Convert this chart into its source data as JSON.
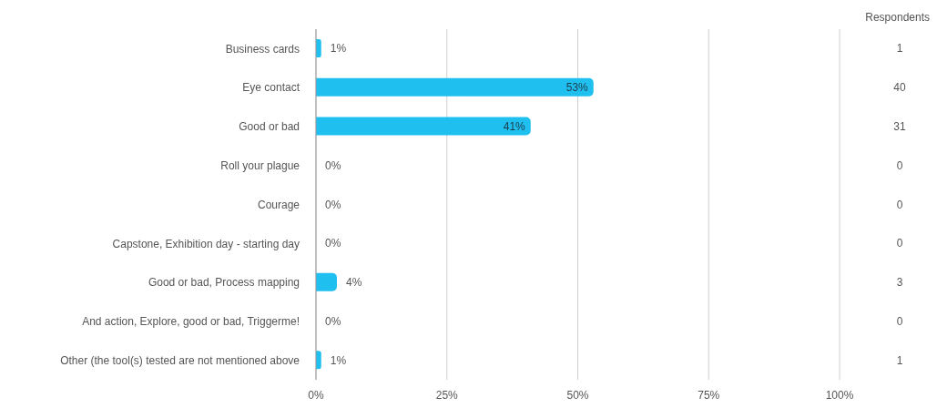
{
  "chart_data": {
    "type": "bar",
    "orientation": "horizontal",
    "categories": [
      "Business cards",
      "Eye contact",
      "Good or bad",
      "Roll your plague",
      "Courage",
      "Capstone, Exhibition day - starting day",
      "Good or bad, Process mapping",
      "And action, Explore, good or bad, Triggerme!",
      "Other (the tool(s) tested are not mentioned above"
    ],
    "values": [
      1,
      53,
      41,
      0,
      0,
      0,
      4,
      0,
      1
    ],
    "value_labels": [
      "1%",
      "53%",
      "41%",
      "0%",
      "0%",
      "0%",
      "4%",
      "0%",
      "1%"
    ],
    "color": "#1fc0f0",
    "xlim": [
      0,
      100
    ],
    "xticks": [
      {
        "value": 0,
        "label": "0%"
      },
      {
        "value": 25,
        "label": "25%"
      },
      {
        "value": 50,
        "label": "50%"
      },
      {
        "value": 75,
        "label": "75%"
      },
      {
        "value": 100,
        "label": "100%"
      }
    ],
    "grid": "x",
    "legend": false,
    "annotations": [
      "Respondents",
      "1",
      "40",
      "31",
      "0",
      "0",
      "0",
      "3",
      "0",
      "1"
    ]
  }
}
